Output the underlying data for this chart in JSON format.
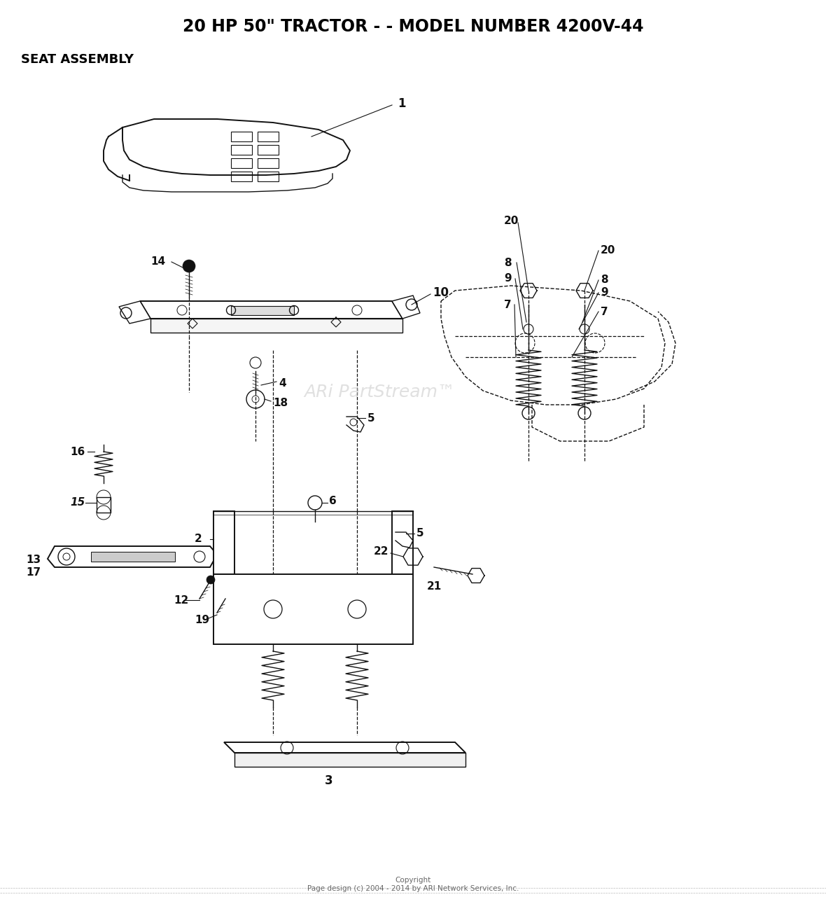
{
  "title": "20 HP 50\" TRACTOR - - MODEL NUMBER 4200V-44",
  "subtitle": "SEAT ASSEMBLY",
  "copyright": "Copyright\nPage design (c) 2004 - 2014 by ARI Network Services, Inc.",
  "watermark": "ARi PartStream™",
  "bg_color": "#ffffff",
  "title_fontsize": 17,
  "subtitle_fontsize": 13,
  "lw": 1.0,
  "lw_thick": 1.4,
  "color": "#111111"
}
